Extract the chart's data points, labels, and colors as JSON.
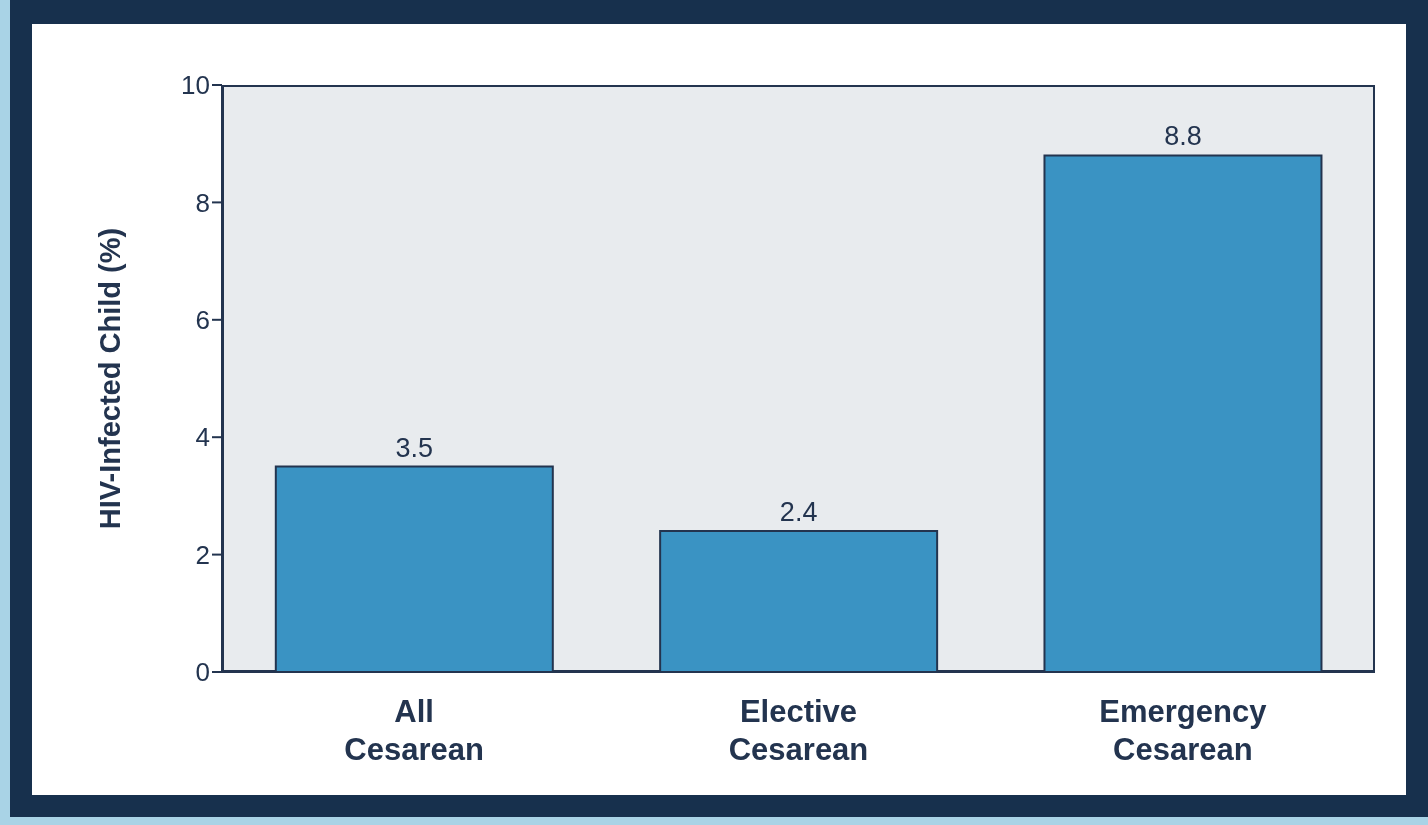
{
  "chart_data": {
    "type": "bar",
    "ylabel": "HIV-Infected Child (%)",
    "categories": [
      "All Cesarean",
      "Elective Cesarean",
      "Emergency Cesarean"
    ],
    "values": [
      3.5,
      2.4,
      8.8
    ],
    "color": "#3a93c3",
    "ylim": [
      0,
      10
    ],
    "yticks": [
      0,
      2,
      4,
      6,
      8,
      10
    ],
    "data_labels": true
  }
}
